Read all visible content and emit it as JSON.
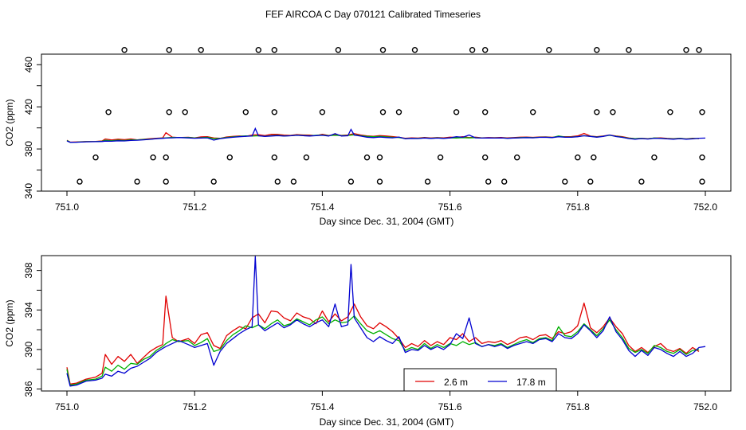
{
  "figure_title": "FEF AIRCOA C  Day 070121  Calibrated Timeseries",
  "colors": {
    "red": "#e00000",
    "green": "#00b000",
    "blue": "#0000d0",
    "axis": "#000000"
  },
  "chart_data": [
    {
      "type": "scatter+line",
      "xlabel": "Day since Dec. 31, 2004 (GMT)",
      "ylabel": "CO2 (ppm)",
      "xlim": [
        751.0,
        752.0
      ],
      "ylim": [
        340,
        470
      ],
      "xticks": [
        "751.0",
        "751.2",
        "751.4",
        "751.6",
        "751.8",
        "752.0"
      ],
      "yticks": [
        "340",
        "380",
        "420",
        "460"
      ],
      "yticks_minor": [
        360,
        400,
        440
      ],
      "calibration_points": [
        {
          "level": 474,
          "x": [
            751.09,
            751.16,
            751.21,
            751.3,
            751.325,
            751.425,
            751.495,
            751.545,
            751.635,
            751.655,
            751.755,
            751.83,
            751.88,
            751.97,
            751.99
          ]
        },
        {
          "level": 415,
          "x": [
            751.065,
            751.16,
            751.185,
            751.28,
            751.325,
            751.4,
            751.495,
            751.52,
            751.61,
            751.655,
            751.73,
            751.83,
            751.855,
            751.945,
            751.995
          ]
        },
        {
          "level": 372,
          "x": [
            751.045,
            751.135,
            751.155,
            751.255,
            751.325,
            751.375,
            751.47,
            751.49,
            751.585,
            751.655,
            751.705,
            751.8,
            751.825,
            751.92,
            751.995
          ]
        },
        {
          "level": 349,
          "x": [
            751.02,
            751.11,
            751.155,
            751.23,
            751.33,
            751.355,
            751.445,
            751.49,
            751.565,
            751.66,
            751.685,
            751.78,
            751.82,
            751.9,
            751.995
          ]
        }
      ]
    },
    {
      "type": "line",
      "xlabel": "Day since Dec. 31, 2004 (GMT)",
      "ylabel": "CO2 (ppm)",
      "xlim": [
        751.0,
        752.0
      ],
      "ylim": [
        385.8,
        399.5
      ],
      "xticks": [
        "751.0",
        "751.2",
        "751.4",
        "751.6",
        "751.8",
        "752.0"
      ],
      "yticks": [
        "386",
        "390",
        "394",
        "398"
      ],
      "yticks_minor": [
        388,
        392,
        396
      ],
      "legend": {
        "position": "bottom-center",
        "entries": [
          "2.6 m",
          "17.8 m"
        ]
      },
      "series": [
        {
          "name": "2.6 m",
          "color": "red",
          "x": [
            751.0,
            751.005,
            751.015,
            751.03,
            751.045,
            751.055,
            751.06,
            751.07,
            751.08,
            751.09,
            751.1,
            751.11,
            751.12,
            751.13,
            751.14,
            751.15,
            751.155,
            751.165,
            751.175,
            751.19,
            751.2,
            751.21,
            751.22,
            751.23,
            751.24,
            751.25,
            751.26,
            751.27,
            751.28,
            751.29,
            751.3,
            751.31,
            751.32,
            751.33,
            751.34,
            751.35,
            751.36,
            751.37,
            751.38,
            751.39,
            751.4,
            751.41,
            751.42,
            751.43,
            751.44,
            751.45,
            751.46,
            751.47,
            751.48,
            751.49,
            751.5,
            751.51,
            751.52,
            751.53,
            751.54,
            751.55,
            751.56,
            751.57,
            751.58,
            751.59,
            751.6,
            751.61,
            751.62,
            751.63,
            751.64,
            751.65,
            751.66,
            751.67,
            751.68,
            751.69,
            751.7,
            751.71,
            751.72,
            751.73,
            751.74,
            751.75,
            751.76,
            751.77,
            751.78,
            751.79,
            751.8,
            751.81,
            751.82,
            751.83,
            751.84,
            751.85,
            751.86,
            751.87,
            751.88,
            751.89,
            751.9,
            751.91,
            751.92,
            751.93,
            751.94,
            751.95,
            751.96,
            751.97,
            751.98,
            751.99
          ],
          "values": [
            388.2,
            386.5,
            386.6,
            387.0,
            387.2,
            387.6,
            389.5,
            388.5,
            389.3,
            388.8,
            389.5,
            388.6,
            389.2,
            389.8,
            390.2,
            390.5,
            395.4,
            391.2,
            390.8,
            391.1,
            390.6,
            391.5,
            391.7,
            390.4,
            390.1,
            391.4,
            391.9,
            392.3,
            392.1,
            393.2,
            393.6,
            392.7,
            393.9,
            393.8,
            393.2,
            392.9,
            393.7,
            393.3,
            393.1,
            392.6,
            393.9,
            392.8,
            393.6,
            392.9,
            393.3,
            394.6,
            393.3,
            392.4,
            392.1,
            392.7,
            392.3,
            391.8,
            391.1,
            390.2,
            390.6,
            390.3,
            390.9,
            390.4,
            390.8,
            390.5,
            391.2,
            391.0,
            391.6,
            390.8,
            391.2,
            390.6,
            390.8,
            390.7,
            390.9,
            390.5,
            390.8,
            391.2,
            391.3,
            391.0,
            391.4,
            391.5,
            391.1,
            391.8,
            391.6,
            391.8,
            392.4,
            394.7,
            392.2,
            391.7,
            392.3,
            393.2,
            392.3,
            391.6,
            390.4,
            389.8,
            390.2,
            389.7,
            390.3,
            390.6,
            390.0,
            389.8,
            390.1,
            389.6,
            390.2,
            389.8
          ]
        },
        {
          "name": "green (unlabeled)",
          "color": "green",
          "x": [
            751.0,
            751.005,
            751.015,
            751.03,
            751.045,
            751.055,
            751.06,
            751.07,
            751.08,
            751.09,
            751.1,
            751.11,
            751.12,
            751.13,
            751.14,
            751.15,
            751.155,
            751.165,
            751.175,
            751.19,
            751.2,
            751.21,
            751.22,
            751.23,
            751.24,
            751.25,
            751.26,
            751.27,
            751.28,
            751.29,
            751.3,
            751.31,
            751.32,
            751.33,
            751.34,
            751.35,
            751.36,
            751.37,
            751.38,
            751.39,
            751.4,
            751.41,
            751.42,
            751.43,
            751.44,
            751.45,
            751.46,
            751.47,
            751.48,
            751.49,
            751.5,
            751.51,
            751.52,
            751.53,
            751.54,
            751.55,
            751.56,
            751.57,
            751.58,
            751.59,
            751.6,
            751.61,
            751.62,
            751.63,
            751.64,
            751.65,
            751.66,
            751.67,
            751.68,
            751.69,
            751.7,
            751.71,
            751.72,
            751.73,
            751.74,
            751.75,
            751.76,
            751.77,
            751.78,
            751.79,
            751.8,
            751.81,
            751.82,
            751.83,
            751.84,
            751.85,
            751.86,
            751.87,
            751.88,
            751.89,
            751.9,
            751.91,
            751.92,
            751.93,
            751.94,
            751.95,
            751.96,
            751.97,
            751.98,
            751.99
          ],
          "values": [
            388.0,
            386.4,
            386.5,
            386.9,
            387.0,
            387.3,
            388.2,
            387.8,
            388.4,
            388.0,
            388.6,
            388.5,
            389.0,
            389.3,
            389.9,
            390.3,
            390.6,
            391.0,
            390.8,
            390.9,
            390.4,
            390.7,
            391.1,
            389.8,
            390.0,
            390.9,
            391.5,
            391.9,
            392.4,
            392.2,
            392.5,
            392.1,
            392.6,
            393.0,
            392.4,
            392.6,
            393.1,
            392.8,
            392.5,
            393.0,
            393.3,
            392.6,
            393.0,
            392.7,
            392.8,
            393.4,
            392.6,
            391.9,
            391.6,
            391.9,
            391.5,
            391.1,
            390.9,
            389.9,
            390.2,
            390.0,
            390.6,
            390.1,
            390.5,
            390.2,
            390.6,
            390.4,
            390.8,
            390.5,
            390.7,
            390.3,
            390.5,
            390.4,
            390.6,
            390.2,
            390.5,
            390.8,
            391.0,
            390.7,
            391.1,
            391.2,
            390.9,
            392.3,
            391.4,
            391.3,
            391.8,
            392.6,
            392.0,
            391.4,
            392.1,
            393.0,
            392.0,
            391.2,
            390.1,
            389.7,
            390.0,
            389.6,
            390.4,
            390.2,
            389.8,
            389.6,
            390.0,
            389.5,
            389.9,
            390.0
          ]
        },
        {
          "name": "17.8 m",
          "color": "blue",
          "x": [
            751.0,
            751.005,
            751.015,
            751.03,
            751.045,
            751.055,
            751.06,
            751.07,
            751.08,
            751.09,
            751.1,
            751.11,
            751.12,
            751.13,
            751.14,
            751.15,
            751.155,
            751.165,
            751.175,
            751.19,
            751.2,
            751.21,
            751.22,
            751.23,
            751.24,
            751.25,
            751.26,
            751.27,
            751.28,
            751.29,
            751.295,
            751.3,
            751.31,
            751.32,
            751.33,
            751.34,
            751.35,
            751.36,
            751.37,
            751.38,
            751.39,
            751.4,
            751.41,
            751.42,
            751.43,
            751.44,
            751.445,
            751.45,
            751.46,
            751.47,
            751.48,
            751.49,
            751.5,
            751.51,
            751.52,
            751.53,
            751.54,
            751.55,
            751.56,
            751.57,
            751.58,
            751.59,
            751.6,
            751.61,
            751.62,
            751.63,
            751.64,
            751.65,
            751.66,
            751.67,
            751.68,
            751.69,
            751.7,
            751.71,
            751.72,
            751.73,
            751.74,
            751.75,
            751.76,
            751.77,
            751.78,
            751.79,
            751.8,
            751.81,
            751.82,
            751.83,
            751.84,
            751.85,
            751.86,
            751.87,
            751.88,
            751.89,
            751.9,
            751.91,
            751.92,
            751.93,
            751.94,
            751.95,
            751.96,
            751.97,
            751.98,
            751.99,
            752.0
          ],
          "values": [
            387.6,
            386.3,
            386.4,
            386.8,
            386.9,
            387.1,
            387.5,
            387.3,
            387.8,
            387.6,
            388.1,
            388.3,
            388.7,
            389.1,
            389.7,
            390.1,
            390.3,
            390.6,
            390.9,
            390.5,
            390.2,
            390.4,
            390.6,
            388.4,
            389.8,
            390.6,
            391.1,
            391.6,
            392.0,
            392.3,
            399.4,
            392.5,
            391.9,
            392.3,
            392.7,
            392.2,
            392.5,
            393.0,
            392.6,
            392.3,
            392.7,
            393.0,
            392.3,
            394.6,
            392.3,
            392.5,
            398.6,
            393.2,
            392.2,
            391.2,
            390.8,
            391.3,
            390.9,
            390.6,
            391.3,
            389.7,
            390.0,
            389.9,
            390.4,
            390.0,
            390.3,
            390.0,
            390.5,
            391.6,
            391.1,
            393.2,
            390.6,
            390.3,
            390.5,
            390.3,
            390.5,
            390.1,
            390.4,
            390.6,
            390.8,
            390.6,
            391.0,
            391.1,
            390.8,
            391.6,
            391.2,
            391.1,
            391.6,
            392.5,
            391.9,
            391.2,
            391.9,
            393.3,
            391.8,
            391.0,
            389.9,
            389.3,
            389.9,
            389.4,
            390.2,
            390.0,
            389.6,
            389.3,
            389.8,
            389.3,
            389.6,
            390.2,
            390.3
          ]
        }
      ]
    }
  ]
}
